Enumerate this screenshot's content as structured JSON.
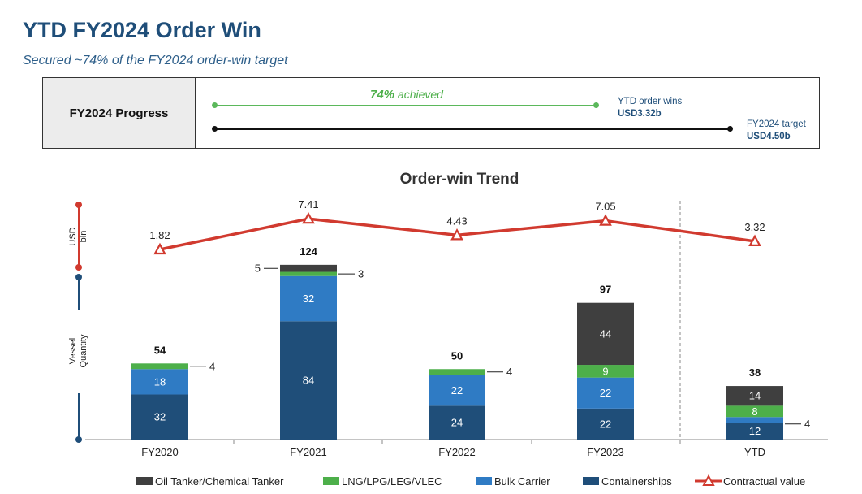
{
  "header": {
    "title": "YTD FY2024 Order Win",
    "subtitle": "Secured ~74% of the FY2024 order-win target"
  },
  "progress": {
    "label": "FY2024 Progress",
    "achieved_pct": "74%",
    "achieved_word": "achieved",
    "ytd_label": "YTD order wins",
    "ytd_value": "USD3.32b",
    "target_label": "FY2024 target",
    "target_value": "USD4.50b",
    "ratio": 0.74
  },
  "colors": {
    "oil": "#3f3f3f",
    "lng": "#4daf4a",
    "bulk": "#2f7bc4",
    "container": "#1f4e79",
    "line": "#d13a2f",
    "progress_green": "#5bb85b"
  },
  "chart_data": {
    "type": "bar",
    "title": "Order-win Trend",
    "categories": [
      "FY2020",
      "FY2021",
      "FY2022",
      "FY2023",
      "YTD"
    ],
    "series": [
      {
        "name": "Containerships",
        "values": [
          32,
          84,
          24,
          22,
          12
        ]
      },
      {
        "name": "Bulk Carrier",
        "values": [
          18,
          32,
          22,
          22,
          4
        ]
      },
      {
        "name": "LNG/LPG/LEG/VLEC",
        "values": [
          4,
          3,
          4,
          9,
          8
        ]
      },
      {
        "name": "Oil Tanker/Chemical Tanker",
        "values": [
          0,
          5,
          0,
          44,
          14
        ]
      }
    ],
    "totals": [
      54,
      124,
      50,
      97,
      38
    ],
    "line_series": {
      "name": "Contractual value",
      "values": [
        1.82,
        7.41,
        4.43,
        7.05,
        3.32
      ],
      "labels": [
        "1.82",
        "7.41",
        "4.43",
        "7.05",
        "3.32"
      ]
    },
    "ylabel_top": "USD bln",
    "ylabel_bottom": "Vessel Quantity",
    "legend": [
      "Oil Tanker/Chemical Tanker",
      "LNG/LPG/LEG/VLEC",
      "Bulk Carrier",
      "Containerships",
      "Contractual value"
    ],
    "legend_position": "bottom"
  }
}
